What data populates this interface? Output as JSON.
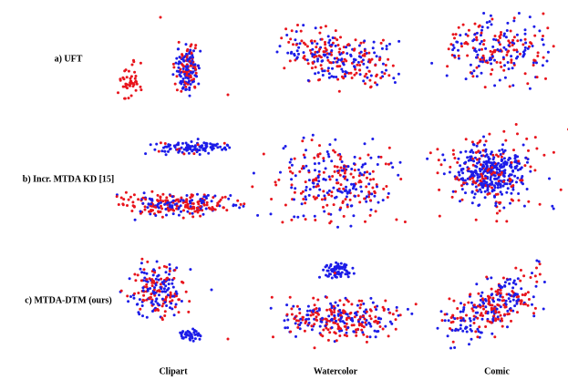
{
  "figure": {
    "rows": [
      "a) UFT",
      "b) Incr. MTDA KD [15]",
      "c) MTDA-DTM (ours)"
    ],
    "columns": [
      "Clipart",
      "Watercolor",
      "Comic"
    ]
  }
}
